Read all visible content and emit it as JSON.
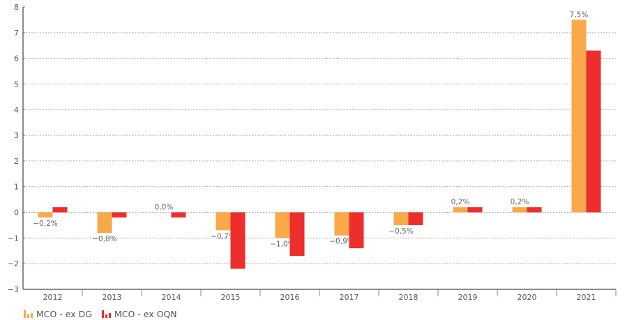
{
  "chart_data": {
    "type": "bar",
    "title": "",
    "xlabel": "",
    "ylabel": "",
    "ylim": [
      -3,
      8
    ],
    "yticks": [
      -3,
      -2,
      -1,
      0,
      1,
      2,
      3,
      4,
      5,
      6,
      7,
      8
    ],
    "ytick_labels": [
      "−3",
      "−2",
      "−1",
      "0",
      "1",
      "2",
      "3",
      "4",
      "5",
      "6",
      "7",
      "8"
    ],
    "grid": "horizontal dotted",
    "categories": [
      "2012",
      "2013",
      "2014",
      "2015",
      "2016",
      "2017",
      "2018",
      "2019",
      "2020",
      "2021"
    ],
    "series": [
      {
        "name": "MCO - ex DG",
        "color": "#F9A94A",
        "values": [
          -0.2,
          -0.8,
          0.0,
          -0.7,
          -1.0,
          -0.9,
          -0.5,
          0.2,
          0.2,
          7.5
        ],
        "labels": [
          "−0,2%",
          "−0,8%",
          "0,0%",
          "−0,7%",
          "−1,0%",
          "−0,9%",
          "−0,5%",
          "0,2%",
          "0,2%",
          "7,5%"
        ]
      },
      {
        "name": "MCO - ex OQN",
        "color": "#EE2D2D",
        "values": [
          0.2,
          -0.2,
          -0.2,
          -2.2,
          -1.7,
          -1.4,
          -0.5,
          0.2,
          0.2,
          6.3
        ]
      }
    ],
    "legend": "bottom-left"
  }
}
